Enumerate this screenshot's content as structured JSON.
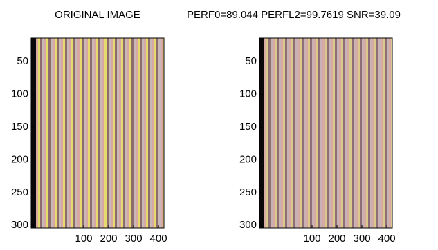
{
  "chart_data": [
    {
      "type": "image",
      "title": "ORIGINAL IMAGE",
      "xlim": [
        -111,
        422
      ],
      "ylim": [
        14,
        304
      ],
      "xticks": [
        100,
        200,
        300,
        400
      ],
      "yticks": [
        50,
        100,
        150,
        200,
        250,
        300
      ]
    },
    {
      "type": "image",
      "title": "PERF0=89.044  PERFL2=99.7619  SNR=39.09",
      "xlim": [
        -111,
        422
      ],
      "ylim": [
        14,
        304
      ],
      "xticks": [
        100,
        200,
        300,
        400
      ],
      "yticks": [
        50,
        100,
        150,
        200,
        250,
        300
      ]
    }
  ]
}
